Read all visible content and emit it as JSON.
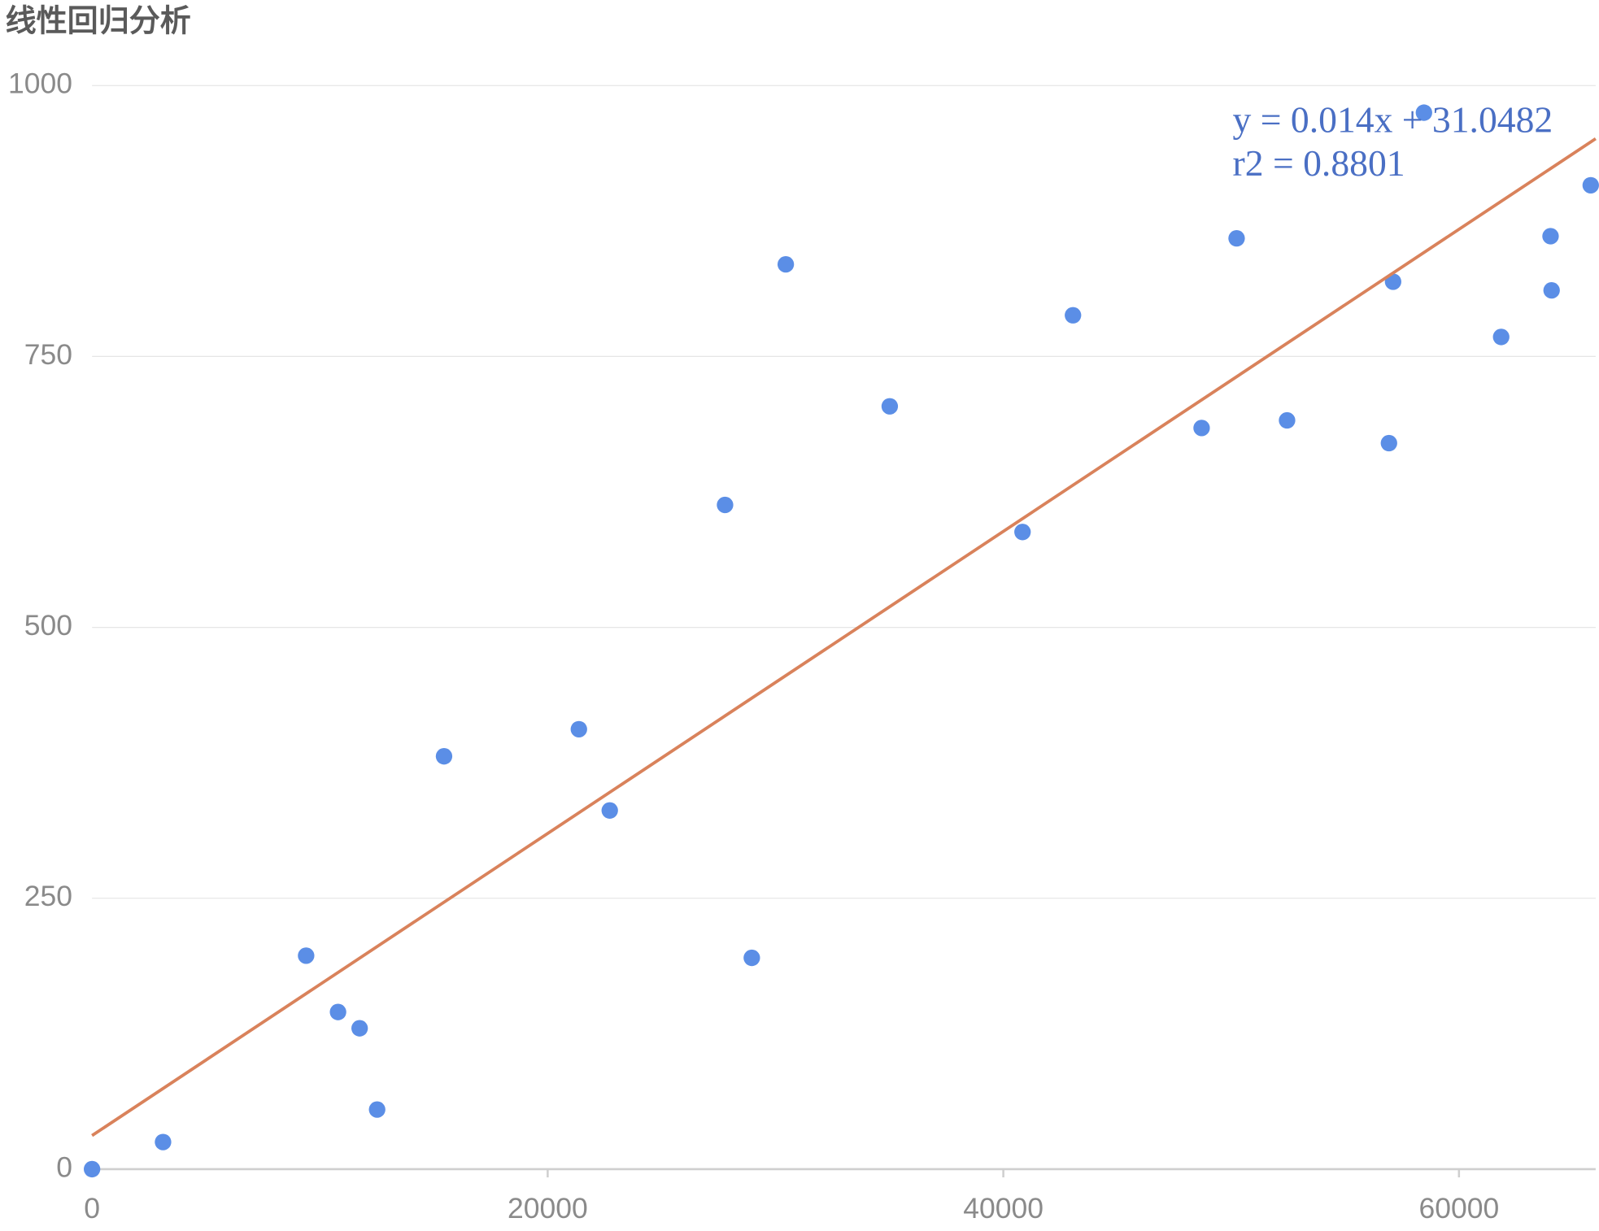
{
  "chart_data": {
    "type": "scatter",
    "title": "线性回归分析",
    "annotations": [
      "y = 0.014x + 31.0482",
      "r2 = 0.8801"
    ],
    "xlim": [
      0,
      66000
    ],
    "xticks": [
      0,
      20000,
      40000,
      60000
    ],
    "ylim": [
      0,
      1000
    ],
    "yticks": [
      0,
      250,
      500,
      750,
      1000
    ],
    "grid": true,
    "series": [
      {
        "type": "scatter",
        "color": "#5b8ee6",
        "x": [
          0,
          3117,
          9397,
          10798,
          11746,
          12514,
          15451,
          21370,
          22725,
          27785,
          28960,
          30451,
          35014,
          40843,
          43057,
          48704,
          50240,
          52454,
          56927,
          57108,
          58463,
          61852,
          64020,
          64066,
          65783
        ],
        "values": [
          0,
          25,
          197,
          145,
          130,
          55,
          381,
          406,
          331,
          613,
          195,
          835,
          704,
          588,
          788,
          684,
          859,
          691,
          670,
          819,
          975,
          768,
          861,
          811,
          908
        ]
      },
      {
        "type": "line",
        "color": "#d9825b",
        "x": [
          0,
          66000
        ],
        "values": [
          31,
          951
        ]
      }
    ]
  }
}
